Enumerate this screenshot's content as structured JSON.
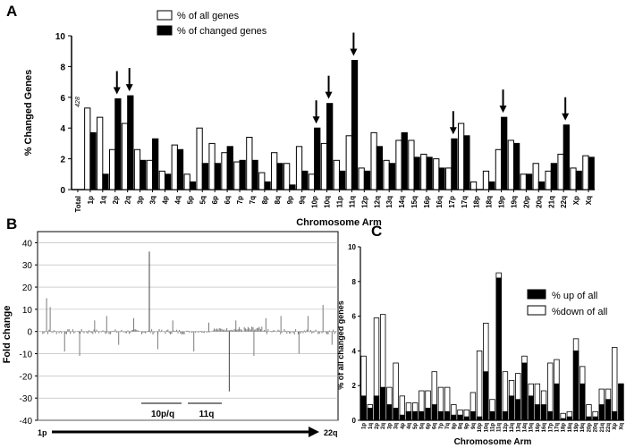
{
  "chart_data": [
    {
      "panel": "A",
      "type": "bar",
      "ylabel": "% Changed Genes",
      "xlabel": "Chromosome Arm",
      "ylim": [
        0,
        10
      ],
      "yticks": [
        0,
        2,
        4,
        6,
        8,
        10
      ],
      "categories": [
        "Total",
        "1p",
        "1q",
        "2p",
        "2q",
        "3p",
        "3q",
        "4p",
        "4q",
        "5p",
        "5q",
        "6p",
        "6q",
        "7p",
        "7q",
        "8p",
        "8q",
        "9p",
        "9q",
        "10p",
        "10q",
        "11p",
        "11q",
        "12p",
        "12q",
        "13q",
        "14q",
        "15q",
        "16p",
        "16q",
        "17p",
        "17q",
        "18p",
        "18q",
        "19p",
        "19q",
        "20p",
        "20q",
        "21q",
        "22q",
        "Xp",
        "Xq"
      ],
      "total_annotation": "428",
      "series": [
        {
          "name": "% of all genes",
          "fill": "#ffffff",
          "values": [
            null,
            5.3,
            4.7,
            2.6,
            4.3,
            2.6,
            1.9,
            1.2,
            2.9,
            1.0,
            4.0,
            3.0,
            2.4,
            1.8,
            3.4,
            1.1,
            2.4,
            1.7,
            2.8,
            1.0,
            3.0,
            1.9,
            3.5,
            1.4,
            3.7,
            1.9,
            3.2,
            3.2,
            2.3,
            2.0,
            1.4,
            4.3,
            0.5,
            1.2,
            2.6,
            3.2,
            1.0,
            1.7,
            1.2,
            2.3,
            1.4,
            2.2
          ]
        },
        {
          "name": "% of changed genes",
          "fill": "#000000",
          "values": [
            null,
            3.7,
            1.0,
            5.9,
            6.1,
            1.9,
            3.3,
            1.0,
            2.6,
            0.5,
            1.7,
            1.7,
            2.8,
            1.9,
            1.9,
            0.5,
            1.7,
            0.3,
            1.2,
            4.0,
            5.6,
            1.2,
            8.4,
            1.2,
            2.8,
            1.7,
            3.7,
            2.1,
            2.1,
            1.4,
            3.3,
            3.5,
            0.0,
            0.5,
            4.7,
            3.0,
            1.0,
            0.5,
            1.7,
            4.2,
            1.2,
            2.1
          ]
        }
      ],
      "arrow_categories": [
        "2p",
        "2q",
        "10p",
        "10q",
        "11q",
        "17p",
        "19p",
        "22q"
      ]
    },
    {
      "panel": "B",
      "type": "line",
      "ylabel": "Fold change",
      "ylim": [
        -40,
        45
      ],
      "yticks": [
        -40,
        -30,
        -20,
        -10,
        0,
        10,
        20,
        30,
        40
      ],
      "x_start_label": "1p",
      "x_end_label": "22q",
      "region_labels": [
        "10p/q",
        "11q"
      ],
      "spikes": [
        {
          "x": 0.03,
          "y": 15
        },
        {
          "x": 0.042,
          "y": 11
        },
        {
          "x": 0.09,
          "y": -9
        },
        {
          "x": 0.14,
          "y": -11
        },
        {
          "x": 0.19,
          "y": 5
        },
        {
          "x": 0.23,
          "y": 7
        },
        {
          "x": 0.27,
          "y": -6
        },
        {
          "x": 0.32,
          "y": 6
        },
        {
          "x": 0.372,
          "y": 36
        },
        {
          "x": 0.4,
          "y": -8
        },
        {
          "x": 0.45,
          "y": 5
        },
        {
          "x": 0.52,
          "y": -9
        },
        {
          "x": 0.57,
          "y": 4
        },
        {
          "x": 0.638,
          "y": -27
        },
        {
          "x": 0.66,
          "y": 5
        },
        {
          "x": 0.72,
          "y": -11
        },
        {
          "x": 0.76,
          "y": 6
        },
        {
          "x": 0.81,
          "y": 7
        },
        {
          "x": 0.87,
          "y": -10
        },
        {
          "x": 0.9,
          "y": 7
        },
        {
          "x": 0.95,
          "y": 12
        },
        {
          "x": 0.98,
          "y": -6
        }
      ]
    },
    {
      "panel": "C",
      "type": "bar",
      "stacked": true,
      "ylabel": "% of all changed genes",
      "xlabel": "Chromosome Arm",
      "ylim": [
        0,
        10
      ],
      "yticks": [
        0,
        2,
        4,
        6,
        8,
        10
      ],
      "categories": [
        "1p",
        "1q",
        "2p",
        "2q",
        "3p",
        "3q",
        "4p",
        "4q",
        "5p",
        "5q",
        "6p",
        "6q",
        "7p",
        "7q",
        "8p",
        "8q",
        "9p",
        "9q",
        "10p",
        "10q",
        "11p",
        "11q",
        "12p",
        "12q",
        "13q",
        "14q",
        "15q",
        "16p",
        "16q",
        "17p",
        "17q",
        "18p",
        "18q",
        "19p",
        "19q",
        "20p",
        "20q",
        "21q",
        "22q",
        "Xp",
        "Xq"
      ],
      "series": [
        {
          "name": "% up of all",
          "fill": "#000000",
          "values": [
            1.4,
            0.7,
            1.4,
            1.9,
            0.9,
            0.7,
            0.3,
            0.5,
            0.5,
            0.5,
            0.7,
            0.9,
            0.5,
            0.5,
            0.3,
            0.3,
            0.2,
            0.5,
            0.2,
            2.8,
            0.5,
            8.2,
            0.5,
            1.4,
            1.2,
            3.3,
            1.4,
            0.9,
            0.9,
            0.5,
            2.1,
            0.1,
            0.2,
            4.0,
            2.1,
            0.2,
            0.2,
            0.9,
            1.2,
            0.5,
            2.1
          ]
        },
        {
          "name": "%down of all",
          "fill": "#ffffff",
          "values": [
            2.3,
            0.2,
            4.5,
            4.2,
            1.0,
            2.6,
            1.1,
            0.5,
            0.5,
            1.2,
            1.0,
            1.9,
            1.4,
            1.4,
            0.6,
            0.3,
            0.4,
            1.1,
            3.8,
            2.8,
            0.7,
            0.3,
            2.3,
            0.9,
            1.5,
            0.4,
            0.7,
            1.2,
            0.8,
            2.8,
            1.4,
            0.3,
            0.3,
            0.7,
            1.0,
            0.7,
            0.3,
            0.9,
            0.6,
            3.7,
            0.0
          ]
        }
      ]
    }
  ],
  "panel_labels": [
    "A",
    "B",
    "C"
  ]
}
